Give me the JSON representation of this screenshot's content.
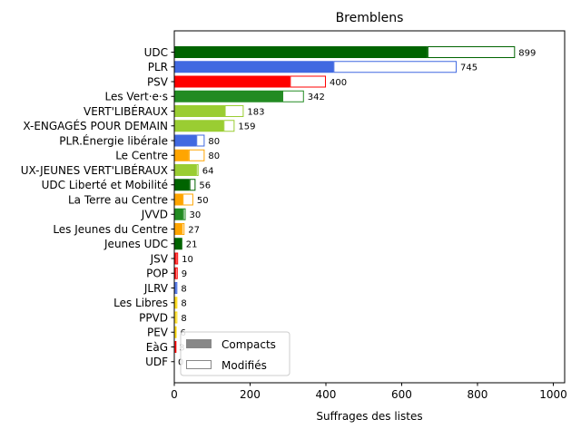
{
  "chart_data": {
    "type": "bar",
    "orientation": "horizontal",
    "stacked": true,
    "title": "Bremblens",
    "xlabel": "Suffrages des listes",
    "ylabel": "",
    "xlim": [
      0,
      1030
    ],
    "xticks": [
      0,
      200,
      400,
      600,
      800,
      1000
    ],
    "grid": false,
    "legend": {
      "placement": "lower-left",
      "entries": [
        {
          "name": "Compacts",
          "style": "filled",
          "color": "#888888"
        },
        {
          "name": "Modifiés",
          "style": "outline",
          "color": "#888888"
        }
      ]
    },
    "categories": [
      "UDC",
      "PLR",
      "PSV",
      "Les Vert·e·s",
      "VERT'LIBÉRAUX",
      "X-ENGAGÉS POUR DEMAIN",
      "PLR.Énergie libérale",
      "Le Centre",
      "UX-JEUNES VERT'LIBÉRAUX",
      "UDC Liberté et Mobilité",
      "La Terre au Centre",
      "JVVD",
      "Les Jeunes du Centre",
      "Jeunes UDC",
      "JSV",
      "POP",
      "JLRV",
      "Les Libres",
      "PPVD",
      "PEV",
      "EàG",
      "UDF"
    ],
    "totals": [
      899,
      745,
      400,
      342,
      183,
      159,
      80,
      80,
      64,
      56,
      50,
      30,
      27,
      21,
      10,
      9,
      8,
      8,
      8,
      6,
      3,
      0
    ],
    "total_labels": [
      "899",
      "745",
      "400",
      "342",
      "183",
      "159",
      "80",
      "80",
      "64",
      "56",
      "50",
      "30",
      "27",
      "21",
      "10",
      "9",
      "8",
      "8",
      "8",
      "6",
      "3",
      "0"
    ],
    "series": [
      {
        "name": "Compacts",
        "values": [
          668,
          420,
          305,
          285,
          133,
          130,
          58,
          38,
          58,
          40,
          22,
          23,
          20,
          21,
          4,
          3,
          3,
          3,
          2,
          2,
          2,
          0
        ]
      },
      {
        "name": "Modifiés",
        "values": [
          231,
          325,
          95,
          57,
          50,
          29,
          22,
          42,
          6,
          16,
          28,
          7,
          7,
          0,
          6,
          6,
          5,
          5,
          6,
          4,
          1,
          0
        ]
      }
    ],
    "colors": [
      "#006400",
      "#4169e1",
      "#ff0000",
      "#228b22",
      "#9acd32",
      "#9acd32",
      "#4169e1",
      "#ffa500",
      "#9acd32",
      "#006400",
      "#ffa500",
      "#228b22",
      "#ffa500",
      "#006400",
      "#ff0000",
      "#ff0000",
      "#4169e1",
      "#ffd700",
      "#ffd700",
      "#ffd700",
      "#ff0000",
      "#4169e1"
    ]
  }
}
